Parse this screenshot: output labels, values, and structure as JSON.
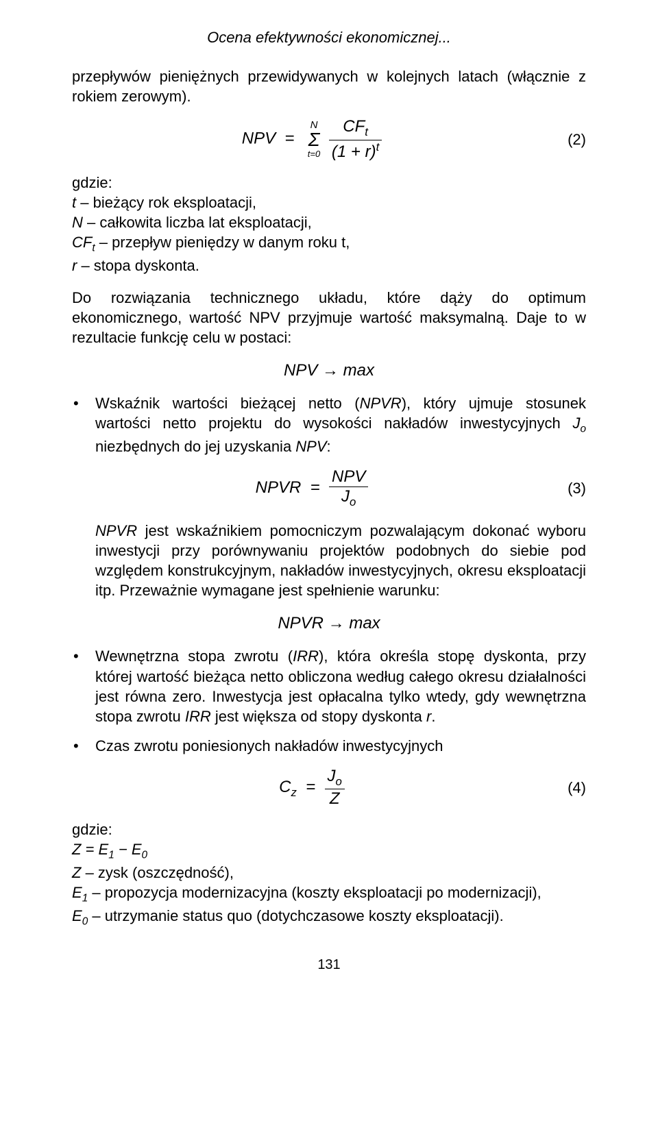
{
  "header": {
    "title": "Ocena efektywności ekonomicznej..."
  },
  "p1": "przepływów pieniężnych przewidywanych w kolejnych latach (włącznie z rokiem zerowym).",
  "eq2": {
    "lhs": "NPV",
    "sigma_top": "N",
    "sigma_bot": "t=0",
    "num": "CFₜ",
    "den_base": "(1 + r)",
    "den_exp": "t",
    "num_label": "(2)"
  },
  "where2": {
    "intro": "gdzie:",
    "l1_a": "t",
    "l1_b": " – bieżący rok eksploatacji,",
    "l2_a": "N",
    "l2_b": " – całkowita liczba lat eksploatacji,",
    "l3_a": "CF",
    "l3_sub": "t",
    "l3_b": " – przepływ pieniędzy w danym roku t,",
    "l4_a": "r",
    "l4_b": " – stopa dyskonta."
  },
  "p2": "Do rozwiązania technicznego układu, które dąży do optimum ekonomicznego, wartość NPV przyjmuje wartość maksymalną. Daje to w rezultacie funkcję celu w postaci:",
  "eq_npv_max": "NPV → max",
  "bullet1": {
    "t1": "Wskaźnik wartości bieżącej netto (",
    "t2": "NPVR",
    "t3": "), który ujmuje stosunek wartości netto projektu do wysokości nakładów inwestycyjnych ",
    "t4": "J",
    "t4_sub": "o",
    "t5": " niezbędnych do jej uzyskania ",
    "t6": "NPV",
    "t7": ":"
  },
  "eq3": {
    "lhs": "NPVR",
    "num": "NPV",
    "den": "J",
    "den_sub": "o",
    "num_label": "(3)"
  },
  "p3_a": "NPVR",
  "p3_b": " jest wskaźnikiem pomocniczym pozwalającym dokonać wyboru inwestycji przy porównywaniu projektów podobnych do siebie pod względem konstrukcyjnym, nakładów inwestycyjnych, okresu eksploatacji itp. Przeważnie wymagane jest spełnienie warunku:",
  "eq_npvr_max": "NPVR → max",
  "bullet2": {
    "t1": "Wewnętrzna stopa zwrotu (",
    "t2": "IRR",
    "t3": "), która określa stopę dyskonta, przy której wartość bieżąca netto obliczona według całego okresu działalności jest równa zero. Inwestycja jest opłacalna tylko wtedy, gdy wewnętrzna stopa zwrotu ",
    "t4": "IRR",
    "t5": " jest większa od stopy dyskonta ",
    "t6": "r",
    "t7": "."
  },
  "bullet3": "Czas zwrotu poniesionych nakładów inwestycyjnych",
  "eq4": {
    "lhs": "C",
    "lhs_sub": "z",
    "num": "J",
    "num_sub": "o",
    "den": "Z",
    "num_label": "(4)"
  },
  "where4": {
    "intro": "gdzie:",
    "l1": "Z = E₁ − E₀",
    "l2_a": "Z",
    "l2_b": " – zysk (oszczędność),",
    "l3_a": "E",
    "l3_sub": "1",
    "l3_b": " – propozycja modernizacyjna (koszty eksploatacji po modernizacji),",
    "l4_a": "E",
    "l4_sub": "0",
    "l4_b": " – utrzymanie status quo (dotychczasowe koszty eksploatacji)."
  },
  "pagenum": "131"
}
